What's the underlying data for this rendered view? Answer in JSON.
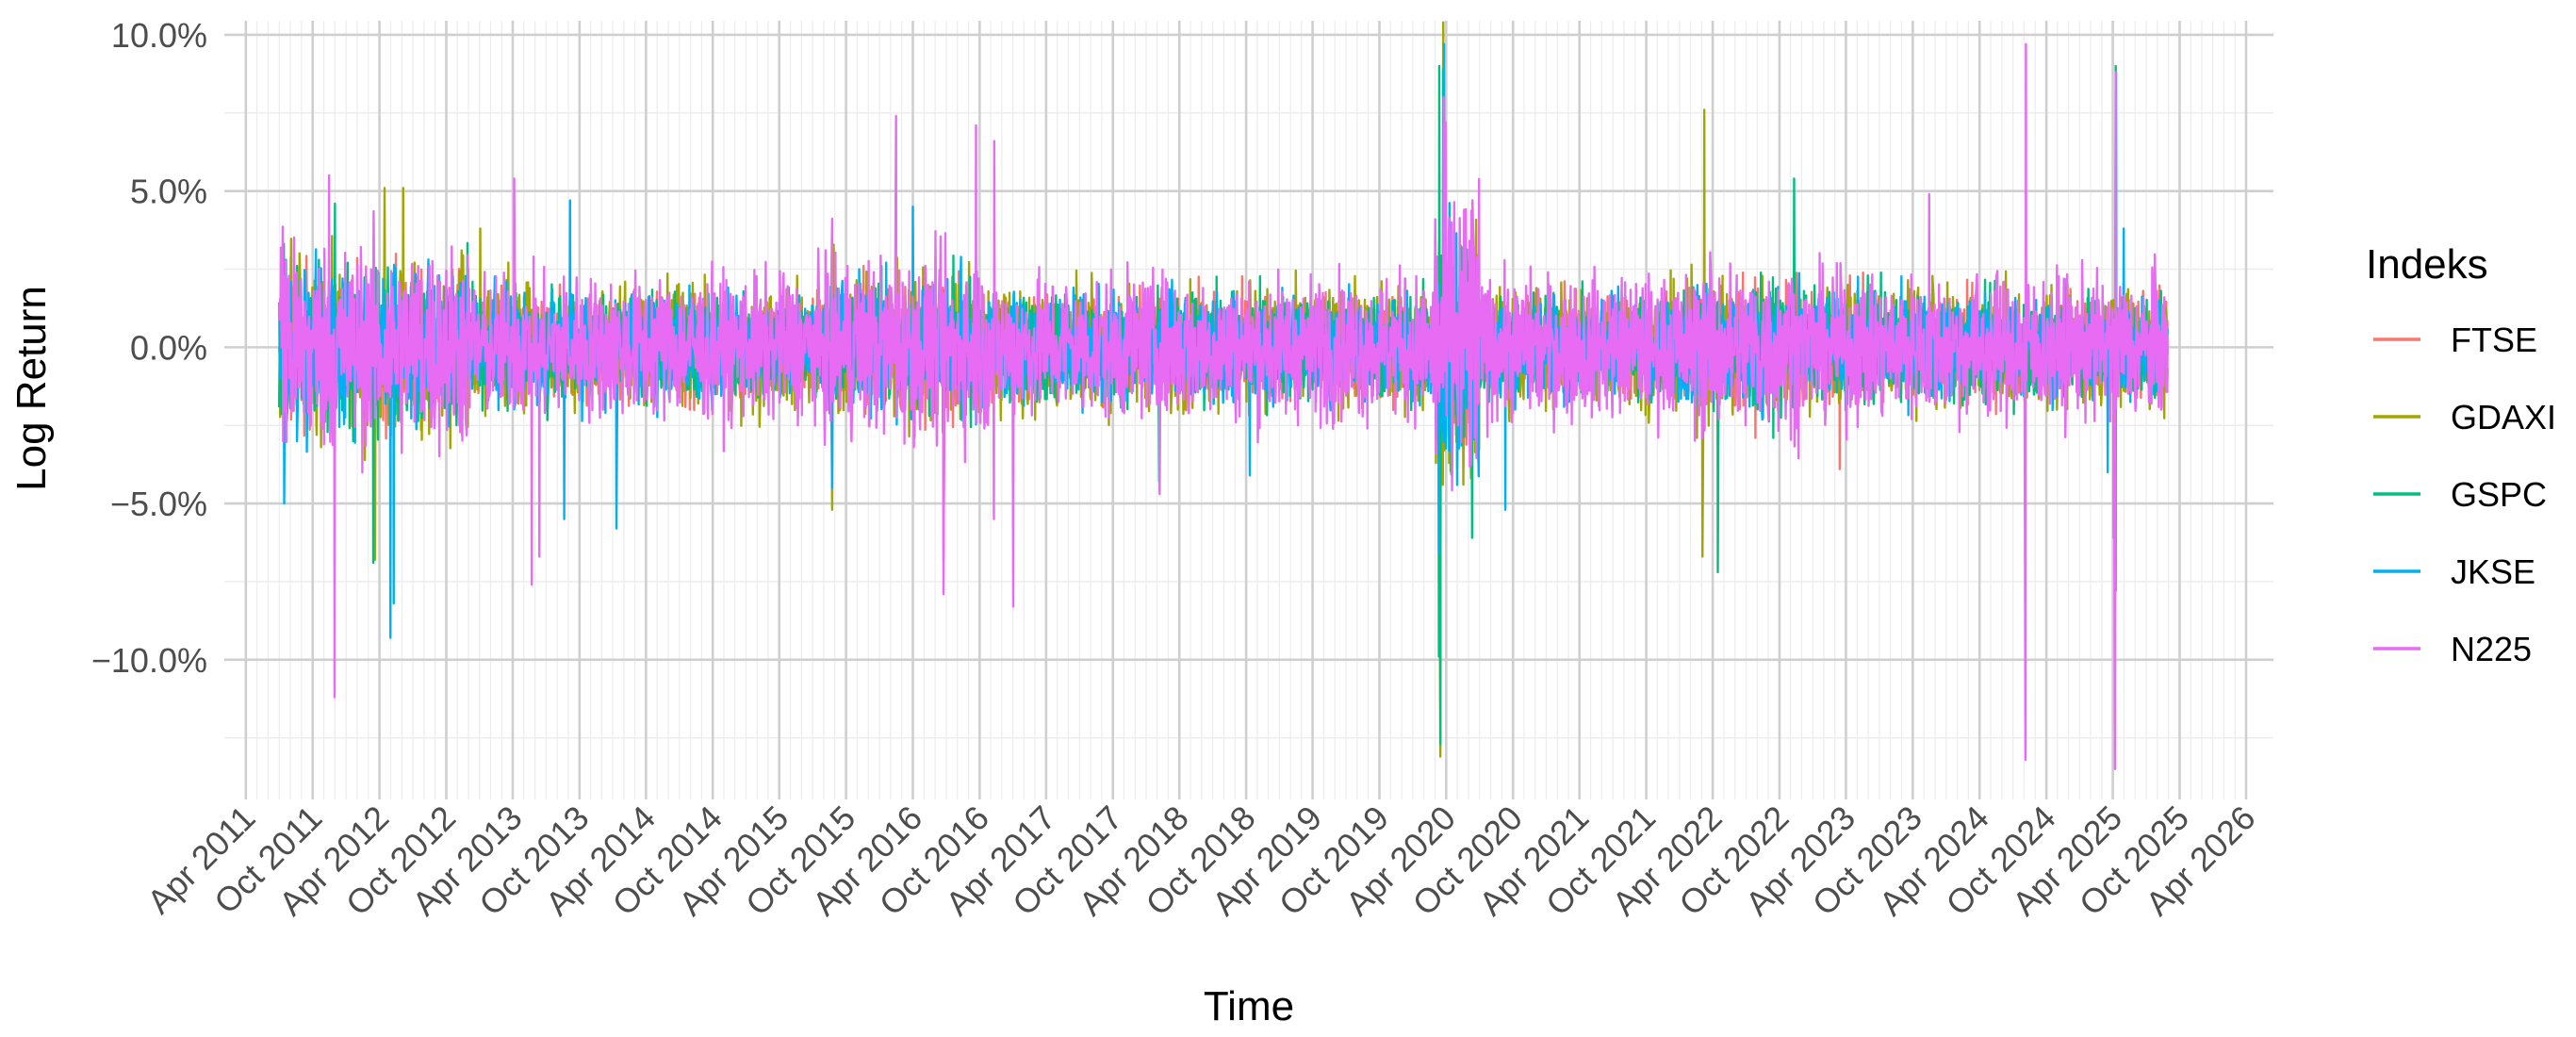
{
  "chart_data": {
    "type": "line",
    "title": "",
    "xlabel": "Time",
    "ylabel": "Log Return",
    "x_range": [
      "2011-02-01",
      "2026-06-15"
    ],
    "ylim": [
      -0.1447,
      0.1045
    ],
    "y_ticks": [
      -0.1,
      -0.05,
      0.0,
      0.05,
      0.1
    ],
    "y_tick_labels": [
      "−10.0%",
      "−5.0%",
      "0.0%",
      "5.0%",
      "10.0%"
    ],
    "x_ticks": [
      "2011-04-01",
      "2011-10-01",
      "2012-04-01",
      "2012-10-01",
      "2013-04-01",
      "2013-10-01",
      "2014-04-01",
      "2014-10-01",
      "2015-04-01",
      "2015-10-01",
      "2016-04-01",
      "2016-10-01",
      "2017-04-01",
      "2017-10-01",
      "2018-04-01",
      "2018-10-01",
      "2019-04-01",
      "2019-10-01",
      "2020-04-01",
      "2020-10-01",
      "2021-04-01",
      "2021-10-01",
      "2022-04-01",
      "2022-10-01",
      "2023-04-01",
      "2023-10-01",
      "2024-04-01",
      "2024-10-01",
      "2025-04-01",
      "2025-10-01",
      "2026-04-01"
    ],
    "x_tick_labels": [
      "Apr 2011",
      "Oct 2011",
      "Apr 2012",
      "Oct 2012",
      "Apr 2013",
      "Oct 2013",
      "Apr 2014",
      "Oct 2014",
      "Apr 2015",
      "Oct 2015",
      "Apr 2016",
      "Oct 2016",
      "Apr 2017",
      "Oct 2017",
      "Apr 2018",
      "Oct 2018",
      "Apr 2019",
      "Oct 2019",
      "Apr 2020",
      "Oct 2020",
      "Apr 2021",
      "Oct 2021",
      "Apr 2022",
      "Oct 2022",
      "Apr 2023",
      "Oct 2023",
      "Apr 2024",
      "Oct 2024",
      "Apr 2025",
      "Oct 2025",
      "Apr 2026"
    ],
    "grid": true,
    "legend": {
      "title": "Indeks",
      "position": "right"
    },
    "series": [
      {
        "name": "FTSE",
        "color": "#F8766D",
        "sigma": 0.008,
        "extremes": [
          [
            "2020-03-16",
            -0.115
          ],
          [
            "2020-03-24",
            0.087
          ],
          [
            "2016-06-24",
            -0.047
          ],
          [
            "2023-03-15",
            -0.039
          ],
          [
            "2012-11-01",
            0.02
          ],
          [
            "2022-03-09",
            0.031
          ]
        ]
      },
      {
        "name": "GDAXI",
        "color": "#A3A500",
        "sigma": 0.009,
        "extremes": [
          [
            "2020-03-16",
            -0.131
          ],
          [
            "2020-03-24",
            0.104
          ],
          [
            "2022-03-09",
            0.076
          ],
          [
            "2022-03-04",
            -0.067
          ],
          [
            "2012-03-20",
            -0.068
          ],
          [
            "2012-04-15",
            0.051
          ],
          [
            "2012-06-05",
            0.051
          ],
          [
            "2015-08-24",
            -0.052
          ],
          [
            "2016-06-24",
            -0.068
          ],
          [
            "2013-01-02",
            0.038
          ],
          [
            "2025-04-09",
            0.065
          ]
        ]
      },
      {
        "name": "GSPC",
        "color": "#00BF7D",
        "sigma": 0.008,
        "extremes": [
          [
            "2020-03-16",
            -0.127
          ],
          [
            "2020-03-13",
            0.09
          ],
          [
            "2020-03-24",
            0.089
          ],
          [
            "2020-03-12",
            -0.099
          ],
          [
            "2025-04-09",
            0.09
          ],
          [
            "2025-04-04",
            -0.061
          ],
          [
            "2022-04-15",
            -0.072
          ],
          [
            "2022-11-10",
            0.054
          ],
          [
            "2012-03-15",
            -0.069
          ],
          [
            "2018-02-05",
            -0.043
          ],
          [
            "2011-12-01",
            0.046
          ],
          [
            "2020-06-11",
            -0.061
          ]
        ]
      },
      {
        "name": "JKSE",
        "color": "#00B0F6",
        "sigma": 0.008,
        "extremes": [
          [
            "2011-07-15",
            -0.05
          ],
          [
            "2011-07-20",
            0.028
          ],
          [
            "2012-05-01",
            -0.093
          ],
          [
            "2012-05-10",
            -0.082
          ],
          [
            "2013-08-20",
            -0.055
          ],
          [
            "2013-09-05",
            0.047
          ],
          [
            "2014-01-10",
            -0.058
          ],
          [
            "2015-08-24",
            -0.045
          ],
          [
            "2016-04-01",
            0.045
          ],
          [
            "2020-03-12",
            -0.066
          ],
          [
            "2020-03-26",
            0.097
          ],
          [
            "2020-09-10",
            -0.052
          ],
          [
            "2025-03-18",
            -0.04
          ],
          [
            "2025-04-09",
            -0.078
          ],
          [
            "2025-04-10",
            0.088
          ],
          [
            "2025-05-01",
            0.038
          ],
          [
            "2018-10-11",
            -0.041
          ]
        ]
      },
      {
        "name": "N225",
        "color": "#E76BF3",
        "sigma": 0.011,
        "extremes": [
          [
            "2011-11-30",
            -0.112
          ],
          [
            "2011-11-15",
            0.055
          ],
          [
            "2013-05-23",
            -0.076
          ],
          [
            "2013-06-13",
            -0.067
          ],
          [
            "2013-04-05",
            0.054
          ],
          [
            "2016-02-15",
            0.074
          ],
          [
            "2016-06-24",
            -0.079
          ],
          [
            "2016-09-21",
            0.071
          ],
          [
            "2016-11-09",
            -0.055
          ],
          [
            "2016-11-10",
            0.066
          ],
          [
            "2017-01-01",
            -0.083
          ],
          [
            "2020-03-25",
            0.08
          ],
          [
            "2024-08-05",
            -0.132
          ],
          [
            "2024-08-06",
            0.097
          ],
          [
            "2025-04-07",
            -0.135
          ],
          [
            "2025-04-09",
            0.088
          ],
          [
            "2018-02-06",
            -0.047
          ],
          [
            "2023-11-15",
            0.049
          ]
        ]
      }
    ]
  }
}
